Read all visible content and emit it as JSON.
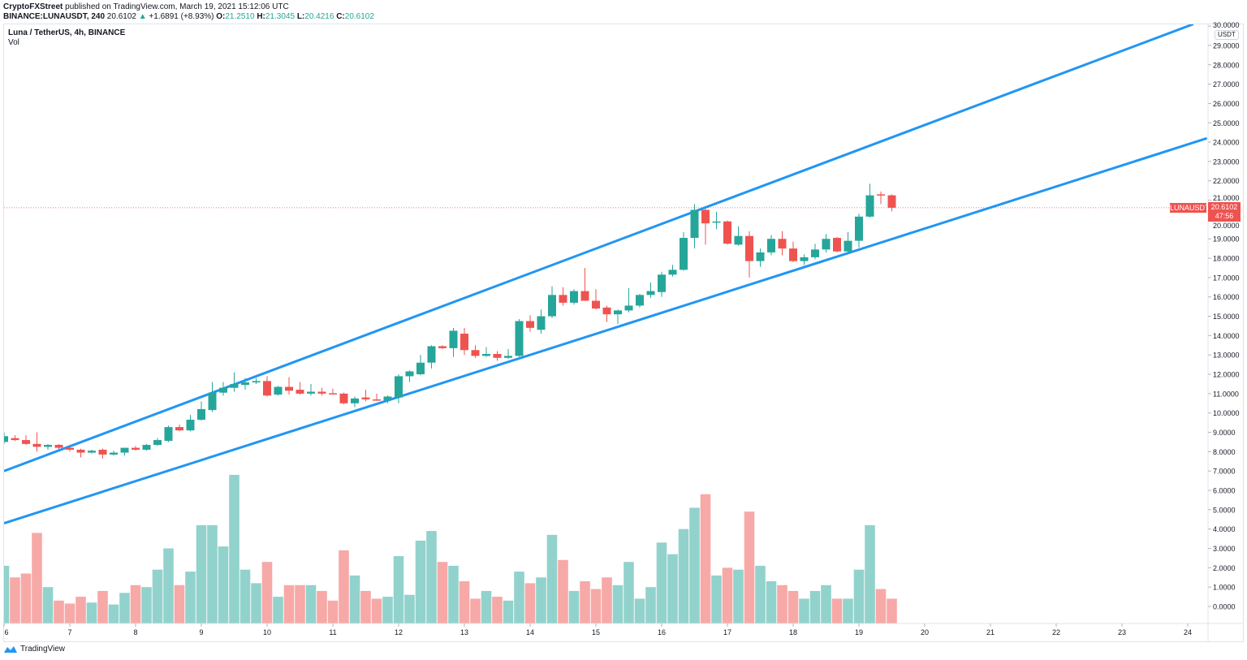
{
  "header": {
    "publisher": "CryptoFXStreet",
    "published_text": " published on TradingView.com, March 19, 2021 15:12:06 UTC",
    "symbol": "BINANCE:LUNAUSDT, 240",
    "last": "20.6102",
    "change_arrow": "▲",
    "change": "+1.6891 (+8.93%)",
    "o_label": "O:",
    "o": "21.2510",
    "h_label": "H:",
    "h": "21.3045",
    "l_label": "L:",
    "l": "20.4216",
    "c_label": "C:",
    "c": "20.6102"
  },
  "legend": {
    "title": "Luna / TetherUS, 4h, BINANCE",
    "vol": "Vol"
  },
  "price_axis": {
    "currency": "USDT",
    "last_label": "LUNAUSDT",
    "last_price": "20.6102",
    "countdown": "47:56"
  },
  "footer": {
    "brand": "TradingView"
  },
  "colors": {
    "up": "#26a69a",
    "down": "#ef5350",
    "vol_up": "#92d2cc",
    "vol_down": "#f7a9a7",
    "channel": "#2196f3"
  },
  "chart_data": {
    "type": "candlestick",
    "interval": "240",
    "y_unit": "USDT",
    "ylim": [
      0,
      30
    ],
    "grid": false,
    "price_ticks": [
      "0.0000",
      "1.0000",
      "2.0000",
      "3.0000",
      "4.0000",
      "5.0000",
      "6.0000",
      "7.0000",
      "8.0000",
      "9.0000",
      "10.0000",
      "11.0000",
      "12.0000",
      "13.0000",
      "14.0000",
      "15.0000",
      "16.0000",
      "17.0000",
      "18.0000",
      "19.0000",
      "20.0000",
      "21.0000",
      "22.0000",
      "23.0000",
      "24.0000",
      "25.0000",
      "26.0000",
      "27.0000",
      "28.0000",
      "29.0000",
      "30.0000"
    ],
    "date_ticks": [
      "6",
      "7",
      "8",
      "9",
      "10",
      "11",
      "12",
      "13",
      "14",
      "15",
      "16",
      "17",
      "18",
      "19",
      "20",
      "21",
      "22",
      "23",
      "24"
    ],
    "candle_fields": [
      "time",
      "open",
      "high",
      "low",
      "close",
      "volume"
    ],
    "candles": [
      [
        "2021-03-06T00:00",
        8.5,
        9.0,
        8.4,
        8.8,
        2.1
      ],
      [
        "2021-03-06T04:00",
        8.7,
        8.85,
        8.55,
        8.6,
        1.5
      ],
      [
        "2021-03-06T08:00",
        8.6,
        8.85,
        8.35,
        8.4,
        1.7
      ],
      [
        "2021-03-06T12:00",
        8.4,
        9.0,
        8.0,
        8.25,
        3.8
      ],
      [
        "2021-03-06T16:00",
        8.25,
        8.4,
        8.1,
        8.35,
        1.0
      ],
      [
        "2021-03-06T20:00",
        8.35,
        8.4,
        8.1,
        8.2,
        0.3
      ],
      [
        "2021-03-07T00:00",
        8.2,
        8.25,
        8.0,
        8.1,
        0.15
      ],
      [
        "2021-03-07T04:00",
        8.1,
        8.15,
        7.7,
        7.95,
        0.5
      ],
      [
        "2021-03-07T08:00",
        7.95,
        8.1,
        7.9,
        8.05,
        0.2
      ],
      [
        "2021-03-07T12:00",
        8.1,
        8.15,
        7.65,
        7.85,
        0.8
      ],
      [
        "2021-03-07T16:00",
        7.85,
        8.05,
        7.8,
        7.95,
        0.1
      ],
      [
        "2021-03-07T20:00",
        7.95,
        8.2,
        7.8,
        8.2,
        0.7
      ],
      [
        "2021-03-08T00:00",
        8.2,
        8.3,
        8.05,
        8.1,
        1.1
      ],
      [
        "2021-03-08T04:00",
        8.1,
        8.4,
        8.05,
        8.35,
        1.0
      ],
      [
        "2021-03-08T08:00",
        8.35,
        8.7,
        8.3,
        8.6,
        1.9
      ],
      [
        "2021-03-08T12:00",
        8.56,
        9.35,
        8.5,
        9.27,
        3.0
      ],
      [
        "2021-03-08T16:00",
        9.27,
        9.4,
        9.05,
        9.1,
        1.1
      ],
      [
        "2021-03-08T20:00",
        9.1,
        9.9,
        9.05,
        9.65,
        1.8
      ],
      [
        "2021-03-09T00:00",
        9.65,
        10.6,
        9.6,
        10.2,
        4.2
      ],
      [
        "2021-03-09T04:00",
        10.15,
        11.6,
        10.05,
        11.05,
        4.2
      ],
      [
        "2021-03-09T08:00",
        11.05,
        11.6,
        10.9,
        11.3,
        3.1
      ],
      [
        "2021-03-09T12:00",
        11.3,
        12.1,
        11.1,
        11.5,
        6.8
      ],
      [
        "2021-03-09T16:00",
        11.45,
        11.8,
        11.2,
        11.58,
        1.9
      ],
      [
        "2021-03-09T20:00",
        11.58,
        11.8,
        11.5,
        11.65,
        1.2
      ],
      [
        "2021-03-10T00:00",
        11.65,
        11.9,
        10.85,
        10.9,
        2.3
      ],
      [
        "2021-03-10T04:00",
        10.95,
        11.4,
        10.9,
        11.35,
        0.5
      ],
      [
        "2021-03-10T08:00",
        11.35,
        11.85,
        10.95,
        11.15,
        1.1
      ],
      [
        "2021-03-10T12:00",
        11.2,
        11.6,
        10.95,
        11.0,
        1.1
      ],
      [
        "2021-03-10T16:00",
        11.0,
        11.5,
        10.9,
        11.1,
        1.1
      ],
      [
        "2021-03-10T20:00",
        11.1,
        11.3,
        10.9,
        11.0,
        0.8
      ],
      [
        "2021-03-11T00:00",
        11.02,
        11.25,
        10.95,
        11.0,
        0.3
      ],
      [
        "2021-03-11T04:00",
        11.0,
        11.05,
        10.45,
        10.5,
        2.9
      ],
      [
        "2021-03-11T08:00",
        10.5,
        10.85,
        10.3,
        10.75,
        1.6
      ],
      [
        "2021-03-11T12:00",
        10.8,
        11.2,
        10.6,
        10.7,
        0.8
      ],
      [
        "2021-03-11T16:00",
        10.7,
        11.0,
        10.62,
        10.65,
        0.4
      ],
      [
        "2021-03-11T20:00",
        10.65,
        10.9,
        10.5,
        10.85,
        0.5
      ],
      [
        "2021-03-12T00:00",
        10.8,
        12.0,
        10.5,
        11.9,
        2.6
      ],
      [
        "2021-03-12T04:00",
        11.9,
        12.2,
        11.6,
        12.15,
        0.6
      ],
      [
        "2021-03-12T08:00",
        12.0,
        13.0,
        11.95,
        12.6,
        3.4
      ],
      [
        "2021-03-12T12:00",
        12.6,
        13.5,
        12.3,
        13.45,
        3.9
      ],
      [
        "2021-03-12T16:00",
        13.45,
        13.5,
        13.3,
        13.35,
        2.3
      ],
      [
        "2021-03-12T20:00",
        13.35,
        14.4,
        12.9,
        14.25,
        2.1
      ],
      [
        "2021-03-13T00:00",
        14.1,
        14.4,
        13.0,
        13.25,
        1.3
      ],
      [
        "2021-03-13T04:00",
        13.25,
        13.5,
        12.85,
        12.95,
        0.4
      ],
      [
        "2021-03-13T08:00",
        12.95,
        13.4,
        12.9,
        13.05,
        0.8
      ],
      [
        "2021-03-13T12:00",
        13.05,
        13.2,
        12.7,
        12.85,
        0.5
      ],
      [
        "2021-03-13T16:00",
        12.85,
        13.3,
        12.8,
        12.95,
        0.3
      ],
      [
        "2021-03-13T20:00",
        12.95,
        14.85,
        12.9,
        14.75,
        1.8
      ],
      [
        "2021-03-14T00:00",
        14.75,
        15.05,
        14.2,
        14.4,
        1.2
      ],
      [
        "2021-03-14T04:00",
        14.3,
        15.35,
        14.1,
        15.0,
        1.5
      ],
      [
        "2021-03-14T08:00",
        15.0,
        16.55,
        14.9,
        16.1,
        3.7
      ],
      [
        "2021-03-14T12:00",
        16.1,
        16.5,
        15.55,
        15.7,
        2.4
      ],
      [
        "2021-03-14T16:00",
        15.7,
        16.4,
        15.6,
        16.3,
        0.8
      ],
      [
        "2021-03-14T20:00",
        16.3,
        17.5,
        15.8,
        15.8,
        1.3
      ],
      [
        "2021-03-15T00:00",
        15.8,
        16.4,
        15.35,
        15.4,
        0.9
      ],
      [
        "2021-03-15T04:00",
        15.45,
        15.55,
        14.7,
        15.1,
        1.5
      ],
      [
        "2021-03-15T08:00",
        15.1,
        15.35,
        14.6,
        15.3,
        1.1
      ],
      [
        "2021-03-15T12:00",
        15.3,
        16.45,
        15.2,
        15.55,
        2.3
      ],
      [
        "2021-03-15T16:00",
        15.55,
        16.15,
        15.45,
        16.1,
        0.4
      ],
      [
        "2021-03-15T20:00",
        16.1,
        16.75,
        15.95,
        16.3,
        1.0
      ],
      [
        "2021-03-16T00:00",
        16.25,
        17.3,
        16.0,
        17.15,
        3.3
      ],
      [
        "2021-03-16T04:00",
        17.15,
        17.65,
        17.05,
        17.4,
        2.7
      ],
      [
        "2021-03-16T08:00",
        17.4,
        19.35,
        17.35,
        19.05,
        4.0
      ],
      [
        "2021-03-16T12:00",
        19.05,
        20.8,
        18.5,
        20.5,
        5.1
      ],
      [
        "2021-03-16T16:00",
        20.5,
        20.55,
        18.7,
        19.8,
        5.8
      ],
      [
        "2021-03-16T20:00",
        19.85,
        20.4,
        19.5,
        19.9,
        1.6
      ],
      [
        "2021-03-17T00:00",
        19.9,
        19.95,
        18.7,
        18.75,
        2.0
      ],
      [
        "2021-03-17T04:00",
        18.7,
        19.65,
        18.65,
        19.15,
        1.9
      ],
      [
        "2021-03-17T08:00",
        19.15,
        19.4,
        17.0,
        17.85,
        4.9
      ],
      [
        "2021-03-17T12:00",
        17.85,
        18.5,
        17.55,
        18.3,
        2.1
      ],
      [
        "2021-03-17T16:00",
        18.3,
        19.2,
        18.15,
        19.0,
        1.3
      ],
      [
        "2021-03-17T20:00",
        19.0,
        19.4,
        18.15,
        18.5,
        1.1
      ],
      [
        "2021-03-18T00:00",
        18.5,
        18.85,
        17.8,
        17.85,
        0.8
      ],
      [
        "2021-03-18T04:00",
        17.85,
        18.2,
        17.65,
        18.05,
        0.4
      ],
      [
        "2021-03-18T08:00",
        18.05,
        18.75,
        17.95,
        18.45,
        0.8
      ],
      [
        "2021-03-18T12:00",
        18.45,
        19.25,
        18.3,
        19.0,
        1.1
      ],
      [
        "2021-03-18T16:00",
        19.05,
        19.1,
        18.3,
        18.35,
        0.4
      ],
      [
        "2021-03-18T20:00",
        18.35,
        19.35,
        18.3,
        18.9,
        0.4
      ],
      [
        "2021-03-19T00:00",
        18.9,
        20.3,
        18.55,
        20.15,
        1.9
      ],
      [
        "2021-03-19T04:00",
        20.15,
        21.85,
        20.1,
        21.25,
        4.2
      ],
      [
        "2021-03-19T08:00",
        21.3,
        21.45,
        20.8,
        21.25,
        0.9
      ],
      [
        "2021-03-19T12:00",
        21.251,
        21.3045,
        20.4216,
        20.6102,
        0.4
      ]
    ],
    "trendlines": [
      {
        "from": {
          "time": "2021-03-06T00:00",
          "price": 7.0
        },
        "to": {
          "time": "2021-03-24T02:00",
          "price": 30.1
        }
      },
      {
        "from": {
          "time": "2021-03-06T00:00",
          "price": 4.3
        },
        "to": {
          "time": "2021-03-24T07:00",
          "price": 24.2
        }
      }
    ],
    "last_price_line": 20.6102
  }
}
